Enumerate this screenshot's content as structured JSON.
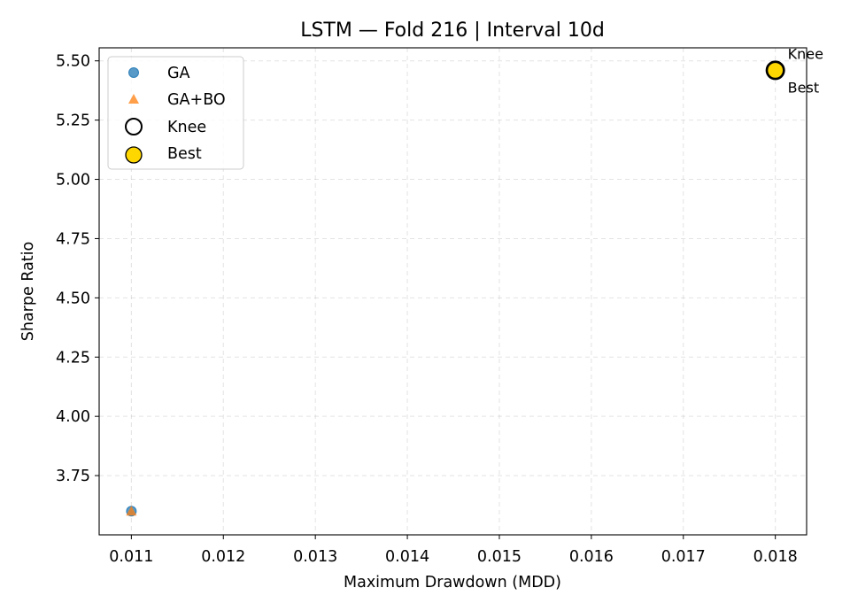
{
  "chart_data": {
    "type": "scatter",
    "title": "LSTM — Fold 216 | Interval 10d",
    "xlabel": "Maximum Drawdown (MDD)",
    "ylabel": "Sharpe Ratio",
    "xlim": [
      0.01065,
      0.01834
    ],
    "ylim": [
      3.5,
      5.555
    ],
    "x_ticks": [
      0.011,
      0.012,
      0.013,
      0.014,
      0.015,
      0.016,
      0.017,
      0.018
    ],
    "x_tick_labels": [
      "0.011",
      "0.012",
      "0.013",
      "0.014",
      "0.015",
      "0.016",
      "0.017",
      "0.018"
    ],
    "y_ticks": [
      3.75,
      4.0,
      4.25,
      4.5,
      4.75,
      5.0,
      5.25,
      5.5
    ],
    "y_tick_labels": [
      "3.75",
      "4.00",
      "4.25",
      "4.50",
      "4.75",
      "5.00",
      "5.25",
      "5.50"
    ],
    "grid": true,
    "legend_position": "top-left",
    "series": [
      {
        "name": "GA",
        "marker": "circle",
        "color": "#1f77b4",
        "points": [
          {
            "x": 0.011,
            "y": 3.6
          }
        ]
      },
      {
        "name": "GA+BO",
        "marker": "triangle",
        "color": "#ff7f0e",
        "points": [
          {
            "x": 0.011,
            "y": 3.6
          }
        ]
      },
      {
        "name": "Knee",
        "marker": "ring",
        "color": "#000000",
        "points": [
          {
            "x": 0.018,
            "y": 5.46
          }
        ]
      },
      {
        "name": "Best",
        "marker": "filled-circle",
        "color": "#ffd700",
        "points": [
          {
            "x": 0.018,
            "y": 5.46
          }
        ]
      }
    ],
    "annotations": [
      {
        "text": "Knee",
        "x": 0.018,
        "y": 5.46,
        "placement": "above-right"
      },
      {
        "text": "Best",
        "x": 0.018,
        "y": 5.46,
        "placement": "below-right"
      }
    ]
  }
}
